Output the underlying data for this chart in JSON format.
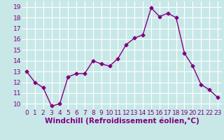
{
  "x": [
    0,
    1,
    2,
    3,
    4,
    5,
    6,
    7,
    8,
    9,
    10,
    11,
    12,
    13,
    14,
    15,
    16,
    17,
    18,
    19,
    20,
    21,
    22,
    23
  ],
  "y": [
    13,
    12,
    11.5,
    9.8,
    10,
    12.5,
    12.8,
    12.8,
    14,
    13.7,
    13.5,
    14.2,
    15.5,
    16.1,
    16.4,
    18.9,
    18.1,
    18.4,
    18.0,
    14.7,
    13.5,
    11.8,
    11.3,
    10.6
  ],
  "line_color": "#800080",
  "marker_color": "#800080",
  "bg_color": "#c8e8e8",
  "grid_color": "#ffffff",
  "xlabel": "Windchill (Refroidissement éolien,°C)",
  "xlabel_fontsize": 7.5,
  "tick_fontsize": 6.5,
  "ylim": [
    9.5,
    19.5
  ],
  "yticks": [
    10,
    11,
    12,
    13,
    14,
    15,
    16,
    17,
    18,
    19
  ],
  "xticks": [
    0,
    1,
    2,
    3,
    4,
    5,
    6,
    7,
    8,
    9,
    10,
    11,
    12,
    13,
    14,
    15,
    16,
    17,
    18,
    19,
    20,
    21,
    22,
    23
  ],
  "marker_size": 2.5,
  "line_width": 1.0
}
